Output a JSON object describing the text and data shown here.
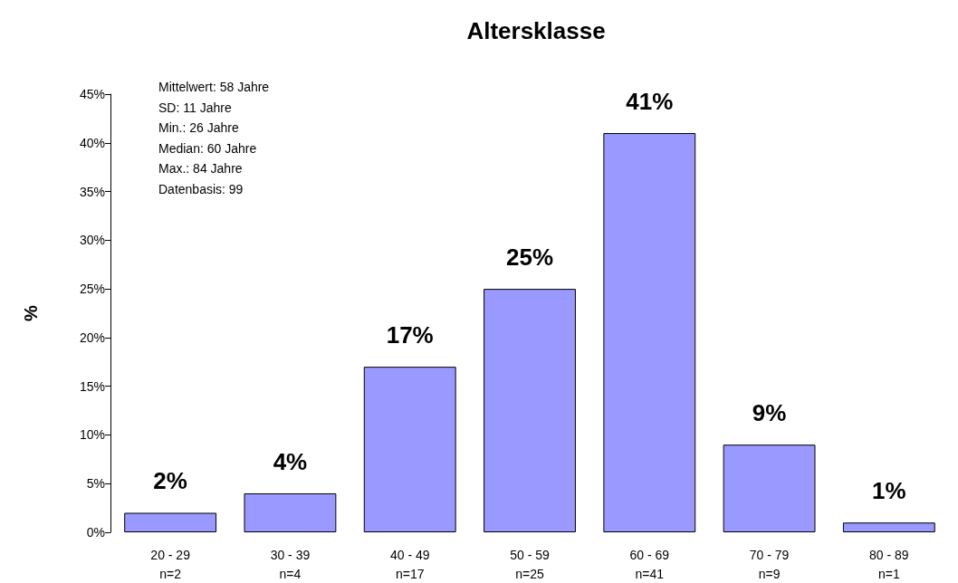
{
  "chart_data": {
    "type": "bar",
    "title": "Altersklasse",
    "ylabel": "%",
    "categories": [
      "20 - 29\nn=2",
      "30 - 39\nn=4",
      "40 - 49\nn=17",
      "50 - 59\nn=25",
      "60 - 69\nn=41",
      "70 - 79\nn=9",
      "80 - 89\nn=1"
    ],
    "values": [
      2,
      4,
      17,
      25,
      41,
      9,
      1
    ],
    "value_labels": [
      "2%",
      "4%",
      "17%",
      "25%",
      "41%",
      "9%",
      "1%"
    ],
    "color": "#9999ff",
    "ylim": [
      0,
      45
    ],
    "yticks": [
      {
        "value": 0,
        "label": "0%"
      },
      {
        "value": 5,
        "label": "5%"
      },
      {
        "value": 10,
        "label": "10%"
      },
      {
        "value": 15,
        "label": "15%"
      },
      {
        "value": 20,
        "label": "20%"
      },
      {
        "value": 25,
        "label": "25%"
      },
      {
        "value": 30,
        "label": "30%"
      },
      {
        "value": 35,
        "label": "35%"
      },
      {
        "value": 40,
        "label": "40%"
      },
      {
        "value": 45,
        "label": "45%"
      }
    ],
    "annotations": [
      "Mittelwert: 58 Jahre",
      "SD: 11 Jahre",
      "Min.: 26 Jahre",
      "Median: 60 Jahre",
      "Max.: 84 Jahre",
      "Datenbasis: 99"
    ],
    "grid": false
  }
}
